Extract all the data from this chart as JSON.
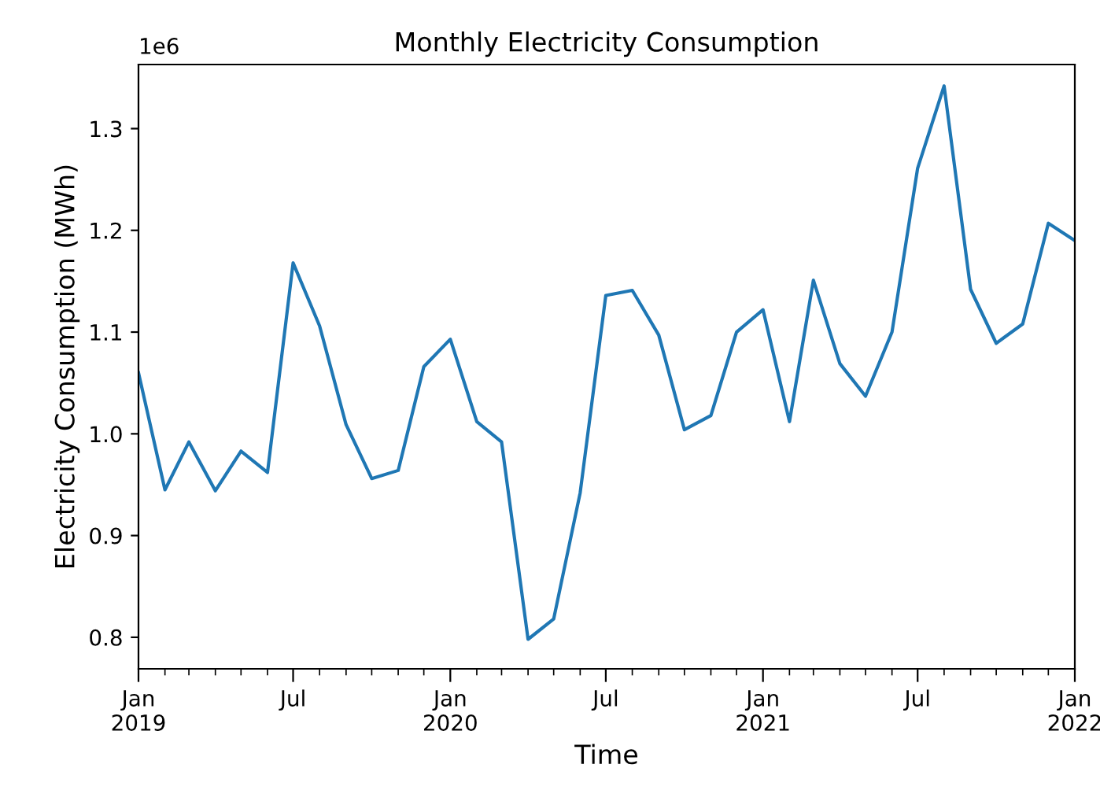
{
  "chart_data": {
    "type": "line",
    "title": "Monthly Electricity Consumption",
    "xlabel": "Time",
    "ylabel": "Electricity Consumption (MWh)",
    "annotations": [
      "1e6"
    ],
    "x": [
      "2019-01",
      "2019-02",
      "2019-03",
      "2019-04",
      "2019-05",
      "2019-06",
      "2019-07",
      "2019-08",
      "2019-09",
      "2019-10",
      "2019-11",
      "2019-12",
      "2020-01",
      "2020-02",
      "2020-03",
      "2020-04",
      "2020-05",
      "2020-06",
      "2020-07",
      "2020-08",
      "2020-09",
      "2020-10",
      "2020-11",
      "2020-12",
      "2021-01",
      "2021-02",
      "2021-03",
      "2021-04",
      "2021-05",
      "2021-06",
      "2021-07",
      "2021-08",
      "2021-09",
      "2021-10",
      "2021-11",
      "2021-12",
      "2022-01"
    ],
    "series": [
      {
        "color": "#1f77b4",
        "values": [
          1.06,
          0.945,
          0.992,
          0.944,
          0.983,
          0.962,
          1.168,
          1.106,
          1.009,
          0.956,
          0.964,
          1.066,
          1.093,
          1.012,
          0.992,
          0.798,
          0.818,
          0.942,
          1.136,
          1.141,
          1.097,
          1.004,
          1.018,
          1.1,
          1.122,
          1.012,
          1.151,
          1.069,
          1.037,
          1.1,
          1.261,
          1.342,
          1.142,
          1.089,
          1.108,
          1.207,
          1.19
        ]
      }
    ],
    "xlim": [
      "2019-01",
      "2022-01"
    ],
    "xticks": [
      {
        "value": "2019-01",
        "label": "Jan\n2019"
      },
      {
        "value": "2019-02",
        "label": null
      },
      {
        "value": "2019-03",
        "label": null
      },
      {
        "value": "2019-04",
        "label": null
      },
      {
        "value": "2019-05",
        "label": null
      },
      {
        "value": "2019-06",
        "label": null
      },
      {
        "value": "2019-07",
        "label": "Jul"
      },
      {
        "value": "2019-08",
        "label": null
      },
      {
        "value": "2019-09",
        "label": null
      },
      {
        "value": "2019-10",
        "label": null
      },
      {
        "value": "2019-11",
        "label": null
      },
      {
        "value": "2019-12",
        "label": null
      },
      {
        "value": "2020-01",
        "label": "Jan\n2020"
      },
      {
        "value": "2020-02",
        "label": null
      },
      {
        "value": "2020-03",
        "label": null
      },
      {
        "value": "2020-04",
        "label": null
      },
      {
        "value": "2020-05",
        "label": null
      },
      {
        "value": "2020-06",
        "label": null
      },
      {
        "value": "2020-07",
        "label": "Jul"
      },
      {
        "value": "2020-08",
        "label": null
      },
      {
        "value": "2020-09",
        "label": null
      },
      {
        "value": "2020-10",
        "label": null
      },
      {
        "value": "2020-11",
        "label": null
      },
      {
        "value": "2020-12",
        "label": null
      },
      {
        "value": "2021-01",
        "label": "Jan\n2021"
      },
      {
        "value": "2021-02",
        "label": null
      },
      {
        "value": "2021-03",
        "label": null
      },
      {
        "value": "2021-04",
        "label": null
      },
      {
        "value": "2021-05",
        "label": null
      },
      {
        "value": "2021-06",
        "label": null
      },
      {
        "value": "2021-07",
        "label": "Jul"
      },
      {
        "value": "2021-08",
        "label": null
      },
      {
        "value": "2021-09",
        "label": null
      },
      {
        "value": "2021-10",
        "label": null
      },
      {
        "value": "2021-11",
        "label": null
      },
      {
        "value": "2021-12",
        "label": null
      },
      {
        "value": "2022-01",
        "label": "Jan\n2022"
      }
    ],
    "ylim": [
      0.769,
      1.363
    ],
    "yticks": [
      0.8,
      0.9,
      {
        "value": 1.0,
        "label": "1.0"
      },
      1.1,
      1.2,
      1.3
    ],
    "grid": false
  }
}
